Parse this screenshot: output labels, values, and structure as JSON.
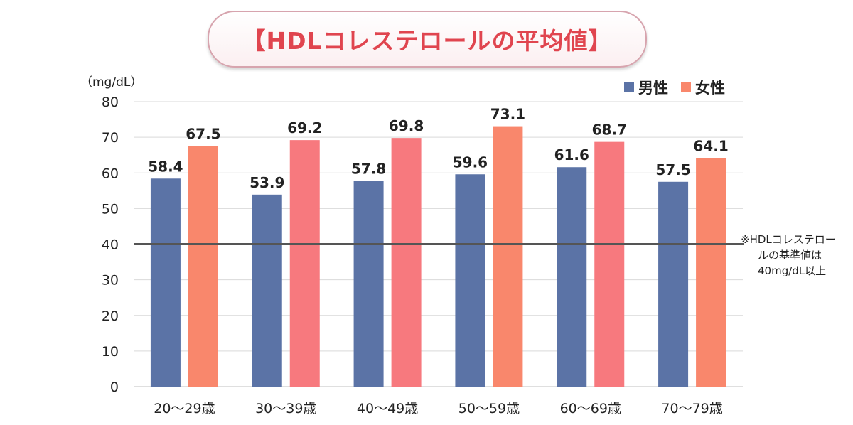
{
  "title": "【HDLコレステロールの平均値】",
  "unit": "（mg/dL）",
  "legend": [
    {
      "name": "男性",
      "color": "#5b73a6"
    },
    {
      "name": "女性",
      "color": "#f9876c"
    }
  ],
  "note": {
    "line1": "※HDLコレステロー",
    "line2": "ルの基準値は",
    "line3": "40mg/dL以上"
  },
  "chart_data": {
    "type": "bar",
    "categories": [
      "20～29歳",
      "30～39歳",
      "40～49歳",
      "50～59歳",
      "60～69歳",
      "70～79歳"
    ],
    "series": [
      {
        "name": "男性",
        "values": [
          58.4,
          53.9,
          57.8,
          59.6,
          61.6,
          57.5
        ],
        "color": "#5b73a6"
      },
      {
        "name": "女性",
        "values": [
          67.5,
          69.2,
          69.8,
          73.1,
          68.7,
          64.1
        ],
        "colors": [
          "#f9876c",
          "#f7797e",
          "#f7797e",
          "#f9876c",
          "#f7797e",
          "#f9876c"
        ]
      }
    ],
    "value_labels": {
      "男性": [
        "58.4",
        "53.9",
        "57.8",
        "59.6",
        "61.6",
        "57.5"
      ],
      "女性": [
        "67.5",
        "69.2",
        "69.8",
        "73.1",
        "68.7",
        "64.1"
      ]
    },
    "ylim": [
      0,
      80
    ],
    "yticks": [
      0,
      10,
      20,
      30,
      40,
      50,
      60,
      70,
      80
    ],
    "reference_line": {
      "value": 40,
      "color": "#555555"
    },
    "grid": true,
    "legend_position": "top-right"
  }
}
